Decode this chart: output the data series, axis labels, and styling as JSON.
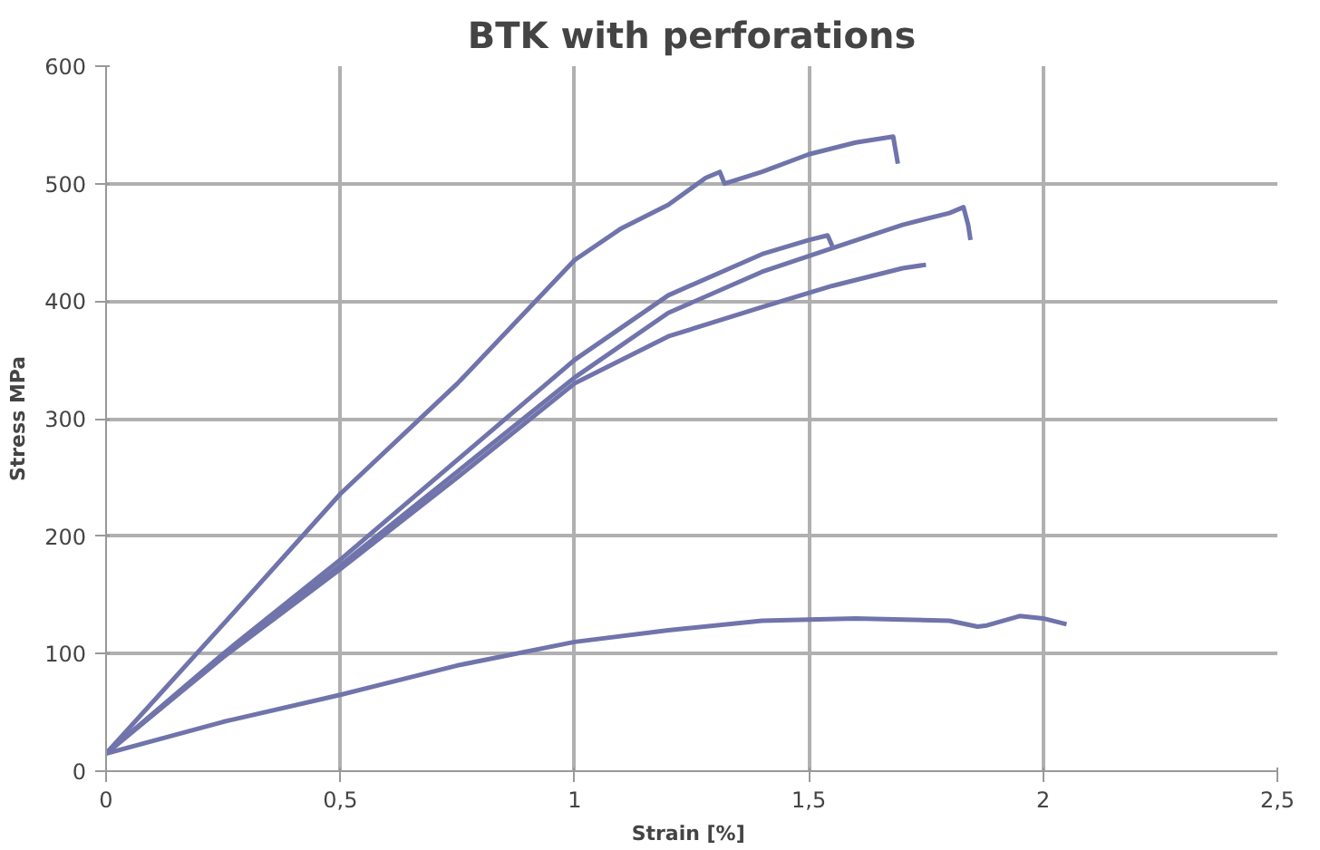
{
  "chart_data": {
    "type": "line",
    "title": "BTK with perforations",
    "xlabel": "Strain  [%]",
    "ylabel": "Stress MPa",
    "xlim": [
      0,
      2.5
    ],
    "ylim": [
      0,
      600
    ],
    "xticks": [
      0,
      {
        "value": 0.5,
        "label": "0,5"
      },
      1,
      {
        "value": 1.5,
        "label": "1,5"
      },
      2,
      {
        "value": 2.5,
        "label": "2,5"
      }
    ],
    "yticks": [
      0,
      100,
      200,
      300,
      400,
      500,
      600
    ],
    "grid": true,
    "marker": "none",
    "line_style": "solid",
    "series": [
      {
        "color": "#7074ab",
        "x": [
          0,
          0.25,
          0.5,
          0.75,
          1,
          1.1,
          1.2,
          1.28,
          1.31,
          1.32,
          1.4,
          1.5,
          1.6,
          1.68,
          1.69
        ],
        "values": [
          15,
          125,
          236,
          330,
          435,
          462,
          482,
          505,
          510,
          500,
          510,
          525,
          535,
          540,
          517
        ]
      },
      {
        "color": "#7074ab",
        "x": [
          0,
          0.25,
          0.5,
          0.75,
          1,
          1.2,
          1.4,
          1.5,
          1.54,
          1.55
        ],
        "values": [
          15,
          100,
          180,
          265,
          350,
          405,
          440,
          452,
          456,
          447
        ]
      },
      {
        "color": "#7074ab",
        "x": [
          0,
          0.25,
          0.5,
          0.75,
          1,
          1.2,
          1.4,
          1.55,
          1.7,
          1.8,
          1.83,
          1.84,
          1.845
        ],
        "values": [
          15,
          98,
          175,
          255,
          335,
          390,
          425,
          445,
          465,
          475,
          480,
          465,
          452
        ]
      },
      {
        "color": "#7074ab",
        "x": [
          0,
          0.25,
          0.5,
          0.75,
          1,
          1.2,
          1.4,
          1.55,
          1.7,
          1.75
        ],
        "values": [
          15,
          97,
          172,
          250,
          330,
          370,
          395,
          413,
          428,
          431
        ]
      },
      {
        "color": "#7074ab",
        "x": [
          0,
          0.25,
          0.5,
          0.75,
          1,
          1.2,
          1.4,
          1.6,
          1.8,
          1.86,
          1.88,
          1.95,
          2.0,
          2.05
        ],
        "values": [
          15,
          42,
          65,
          90,
          110,
          120,
          128,
          130,
          128,
          123,
          124,
          132,
          130,
          125
        ]
      }
    ]
  }
}
